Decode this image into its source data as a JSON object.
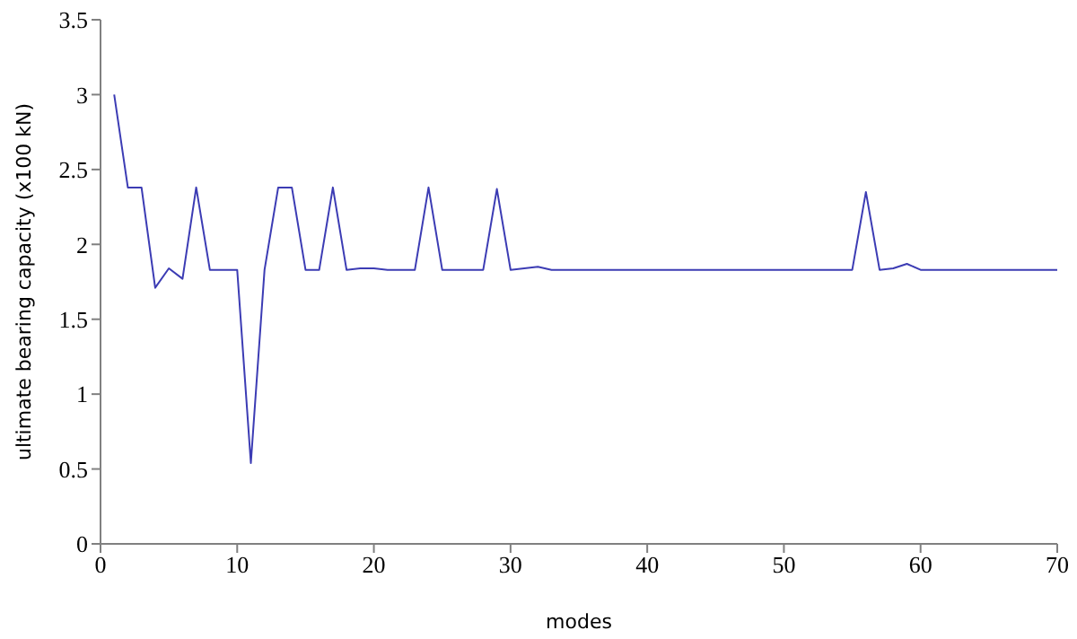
{
  "chart_data": {
    "type": "line",
    "xlabel": "modes",
    "ylabel": "ultimate bearing capacity (x100 kN)",
    "x": [
      1,
      2,
      3,
      4,
      5,
      6,
      7,
      8,
      9,
      10,
      11,
      12,
      13,
      14,
      15,
      16,
      17,
      18,
      19,
      20,
      21,
      22,
      23,
      24,
      25,
      26,
      27,
      28,
      29,
      30,
      31,
      32,
      33,
      34,
      35,
      36,
      37,
      38,
      39,
      40,
      41,
      42,
      43,
      44,
      45,
      46,
      47,
      48,
      49,
      50,
      51,
      52,
      53,
      54,
      55,
      56,
      57,
      58,
      59,
      60,
      61,
      62,
      63,
      64,
      65,
      66,
      67,
      68,
      69,
      70
    ],
    "series": [
      {
        "color": "#3c3cb4",
        "values": [
          3.0,
          2.38,
          2.38,
          1.71,
          1.84,
          1.77,
          2.38,
          1.83,
          1.83,
          1.83,
          0.54,
          1.83,
          2.38,
          2.38,
          1.83,
          1.83,
          2.38,
          1.83,
          1.84,
          1.84,
          1.83,
          1.83,
          1.83,
          2.38,
          1.83,
          1.83,
          1.83,
          1.83,
          2.37,
          1.83,
          1.84,
          1.85,
          1.83,
          1.83,
          1.83,
          1.83,
          1.83,
          1.83,
          1.83,
          1.83,
          1.83,
          1.83,
          1.83,
          1.83,
          1.83,
          1.83,
          1.83,
          1.83,
          1.83,
          1.83,
          1.83,
          1.83,
          1.83,
          1.83,
          1.83,
          2.35,
          1.83,
          1.84,
          1.87,
          1.83,
          1.83,
          1.83,
          1.83,
          1.83,
          1.83,
          1.83,
          1.83,
          1.83,
          1.83,
          1.83
        ]
      }
    ],
    "xlim": [
      0,
      70
    ],
    "xticks": [
      0,
      10,
      20,
      30,
      40,
      50,
      60,
      70
    ],
    "ylim": [
      0,
      3.5
    ],
    "yticks": [
      0,
      0.5,
      1,
      1.5,
      2,
      2.5,
      3,
      3.5
    ],
    "grid": false,
    "legend": false,
    "marker": "none",
    "line_style": "solid"
  }
}
